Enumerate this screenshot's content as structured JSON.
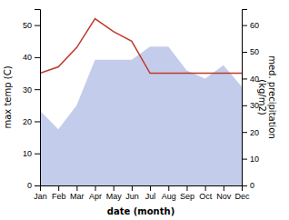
{
  "chart_data": {
    "type": "line",
    "categories": [
      "Jan",
      "Feb",
      "Mar",
      "Apr",
      "May",
      "Jun",
      "Jul",
      "Aug",
      "Sep",
      "Oct",
      "Nov",
      "Dec"
    ],
    "xlabel": "date (month)",
    "ylabel": "max temp (C)",
    "y2label": "med. precipitation\n(kg/m2)",
    "ylim": [
      0,
      55
    ],
    "yticks": [
      0,
      10,
      20,
      30,
      40,
      50
    ],
    "y2lim": [
      0,
      66
    ],
    "y2ticks": [
      0,
      10,
      20,
      30,
      40,
      50,
      60
    ],
    "series": [
      {
        "type": "area",
        "axis": "y2",
        "color": "#b8c4e8",
        "values": [
          28,
          21,
          30,
          47,
          47,
          47,
          52,
          52,
          43,
          40,
          45,
          37
        ]
      },
      {
        "type": "line",
        "color": "#c0392b",
        "values": [
          35,
          37,
          43,
          52,
          48,
          45,
          35,
          35,
          35,
          35,
          35,
          35
        ]
      }
    ]
  }
}
